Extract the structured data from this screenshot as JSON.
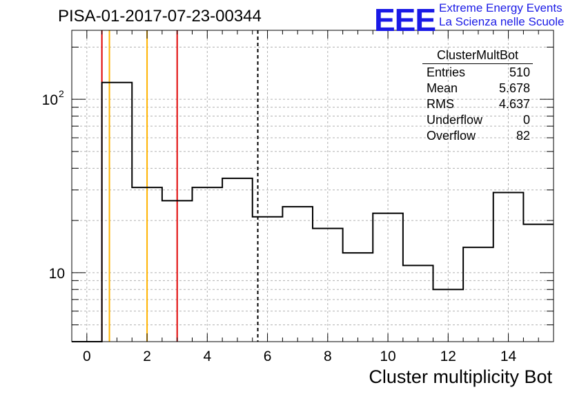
{
  "header": {
    "title": "PISA-01-2017-07-23-00344",
    "logo": "EEE",
    "logo_line1": "Extreme Energy Events",
    "logo_line2": "La Scienza nelle Scuole"
  },
  "stats_box": {
    "name": "ClusterMultBot",
    "rows": [
      {
        "label": "Entries",
        "value": "510"
      },
      {
        "label": "Mean",
        "value": "5.678"
      },
      {
        "label": "RMS",
        "value": "4.637"
      },
      {
        "label": "Underflow",
        "value": "0"
      },
      {
        "label": "Overflow",
        "value": "82"
      }
    ]
  },
  "chart_data": {
    "type": "histogram",
    "xlabel": "Cluster multiplicity Bot",
    "ylabel": "",
    "xlim": [
      -0.5,
      15.5
    ],
    "ylim": [
      4,
      250
    ],
    "yscale": "log",
    "grid": true,
    "bin_edges": [
      -0.5,
      0.5,
      1.5,
      2.5,
      3.5,
      4.5,
      5.5,
      6.5,
      7.5,
      8.5,
      9.5,
      10.5,
      11.5,
      12.5,
      13.5,
      14.5,
      15.5
    ],
    "values": [
      0,
      125,
      31,
      26,
      31,
      35,
      21,
      24,
      18,
      13,
      22,
      11,
      8,
      14,
      29,
      19
    ],
    "x_ticks": [
      0,
      2,
      4,
      6,
      8,
      10,
      12,
      14
    ],
    "y_tick_labels": [
      "10",
      "10^2"
    ],
    "vertical_lines": [
      {
        "x": 0.5,
        "color": "#e00000",
        "style": "solid"
      },
      {
        "x": 0.75,
        "color": "#ffb300",
        "style": "solid"
      },
      {
        "x": 2.0,
        "color": "#ffb300",
        "style": "solid"
      },
      {
        "x": 3.0,
        "color": "#e00000",
        "style": "solid"
      },
      {
        "x": 5.678,
        "color": "#000000",
        "style": "dashed"
      }
    ]
  }
}
